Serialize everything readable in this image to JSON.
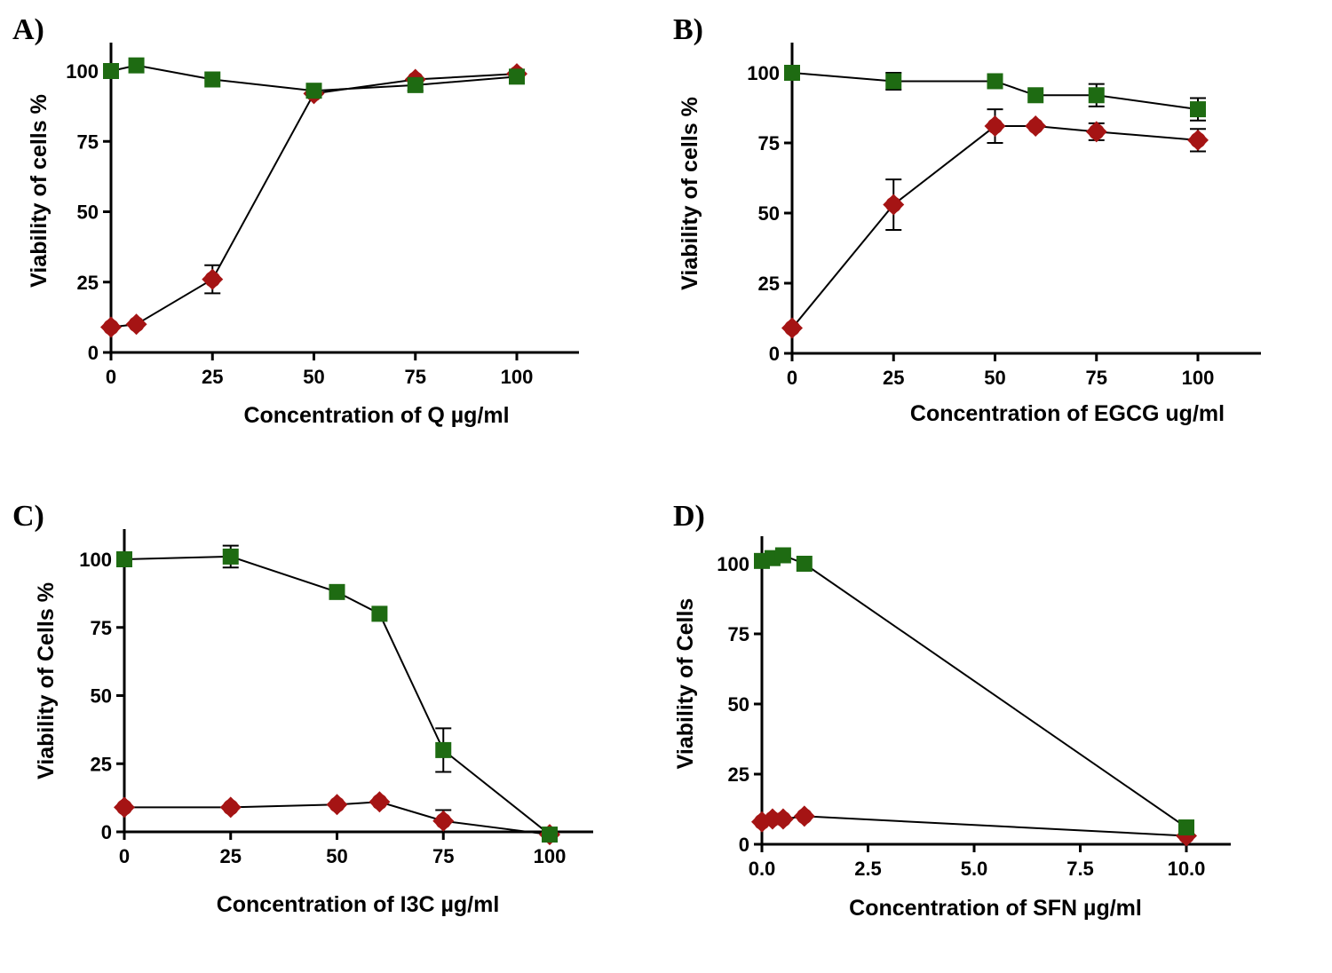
{
  "colors": {
    "series_green": "#1e6b12",
    "series_red": "#a51414",
    "line": "#000000"
  },
  "chart_data": [
    {
      "panel": "A)",
      "type": "line",
      "xlabel": "Concentration of Q µg/ml",
      "ylabel": "Viability of cells %",
      "xlim": [
        0,
        115
      ],
      "ylim": [
        0,
        110
      ],
      "xticks": [
        0,
        25,
        50,
        75,
        100
      ],
      "yticks": [
        0,
        25,
        50,
        75,
        100
      ],
      "xtick_labels": [
        "0",
        "25",
        "50",
        "75",
        "100"
      ],
      "series": [
        {
          "color": "#a51414",
          "marker": "diamond-circle",
          "x": [
            0,
            6.25,
            25,
            50,
            75,
            100
          ],
          "y": [
            9,
            10,
            26,
            92,
            97,
            99
          ],
          "err": [
            0,
            0,
            5,
            0,
            0,
            0
          ]
        },
        {
          "color": "#1e6b12",
          "marker": "square",
          "x": [
            0,
            6.25,
            25,
            50,
            75,
            100
          ],
          "y": [
            100,
            102,
            97,
            93,
            95,
            98
          ],
          "err": [
            0,
            0,
            0,
            0,
            2,
            0
          ]
        }
      ]
    },
    {
      "panel": "B)",
      "type": "line",
      "xlabel": "Concentration of EGCG ug/ml",
      "ylabel": "Viability of cells %",
      "xlim": [
        0,
        115
      ],
      "ylim": [
        0,
        110
      ],
      "xticks": [
        0,
        25,
        50,
        75,
        100
      ],
      "yticks": [
        0,
        25,
        50,
        75,
        100
      ],
      "xtick_labels": [
        "0",
        "25",
        "50",
        "75",
        "100"
      ],
      "series": [
        {
          "color": "#a51414",
          "marker": "diamond-circle",
          "x": [
            0,
            25,
            50,
            60,
            75,
            100
          ],
          "y": [
            9,
            53,
            81,
            81,
            79,
            76
          ],
          "err": [
            0,
            9,
            6,
            0,
            3,
            4
          ]
        },
        {
          "color": "#1e6b12",
          "marker": "square",
          "x": [
            0,
            25,
            50,
            60,
            75,
            100
          ],
          "y": [
            100,
            97,
            97,
            92,
            92,
            87
          ],
          "err": [
            0,
            3,
            0,
            0,
            4,
            4
          ]
        }
      ]
    },
    {
      "panel": "C)",
      "type": "line",
      "xlabel": "Concentration of I3C µg/ml",
      "ylabel": "Viability of Cells %",
      "xlim": [
        0,
        110
      ],
      "ylim": [
        -3,
        110
      ],
      "xticks": [
        0,
        25,
        50,
        75,
        100
      ],
      "yticks": [
        0,
        25,
        50,
        75,
        100
      ],
      "xtick_labels": [
        "0",
        "25",
        "50",
        "75",
        "100"
      ],
      "series": [
        {
          "color": "#a51414",
          "marker": "diamond-circle",
          "x": [
            0,
            25,
            50,
            60,
            75,
            100
          ],
          "y": [
            9,
            9,
            10,
            11,
            4,
            -1
          ],
          "err": [
            0,
            0,
            0,
            0,
            4,
            0
          ]
        },
        {
          "color": "#1e6b12",
          "marker": "square",
          "x": [
            0,
            25,
            50,
            60,
            75,
            100
          ],
          "y": [
            100,
            101,
            88,
            80,
            30,
            -1
          ],
          "err": [
            0,
            4,
            0,
            0,
            8,
            0
          ]
        }
      ]
    },
    {
      "panel": "D)",
      "type": "line",
      "xlabel": "Concentration of SFN µg/ml",
      "ylabel": "Viability of Cells",
      "xlim": [
        0,
        11
      ],
      "ylim": [
        0,
        110
      ],
      "xticks": [
        0,
        2.5,
        5,
        7.5,
        10
      ],
      "yticks": [
        0,
        25,
        50,
        75,
        100
      ],
      "xtick_labels": [
        "0.0",
        "2.5",
        "5.0",
        "7.5",
        "10.0"
      ],
      "series": [
        {
          "color": "#a51414",
          "marker": "diamond-circle",
          "x": [
            0,
            0.25,
            0.5,
            1,
            10
          ],
          "y": [
            8,
            9,
            9,
            10,
            3
          ],
          "err": [
            0,
            0,
            0,
            0,
            0
          ]
        },
        {
          "color": "#1e6b12",
          "marker": "square",
          "x": [
            0,
            0.25,
            0.5,
            1,
            10
          ],
          "y": [
            101,
            102,
            103,
            100,
            6
          ],
          "err": [
            0,
            0,
            0,
            0,
            0
          ]
        }
      ]
    }
  ]
}
